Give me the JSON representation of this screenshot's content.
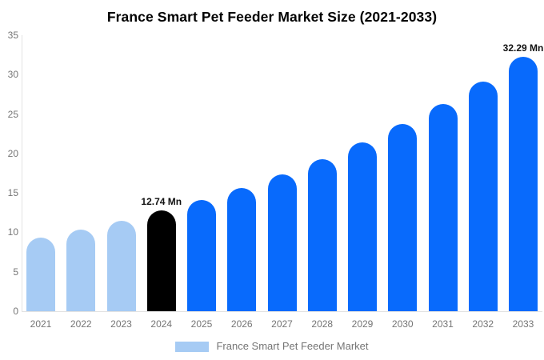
{
  "title": "France Smart Pet Feeder Market Size (2021-2033)",
  "legend": {
    "label": "France Smart Pet Feeder Market",
    "swatch_color": "#a6cbf4"
  },
  "colors": {
    "past_bar": "#a6cbf4",
    "highlight_bar": "#000000",
    "forecast_bar": "#086afc",
    "axis_line": "#e2e2e2",
    "tick_text": "#757575",
    "title_text": "#000000",
    "annotation_text": "#111111",
    "background": "#ffffff"
  },
  "chart_data": {
    "type": "bar",
    "title": "France Smart Pet Feeder Market Size (2021-2033)",
    "categories": [
      "2021",
      "2022",
      "2023",
      "2024",
      "2025",
      "2026",
      "2027",
      "2028",
      "2029",
      "2030",
      "2031",
      "2032",
      "2033"
    ],
    "values": [
      9.34,
      10.36,
      11.49,
      12.74,
      14.13,
      15.67,
      17.38,
      19.27,
      21.37,
      23.7,
      26.28,
      29.15,
      32.29
    ],
    "bar_labels": [
      "",
      "",
      "",
      "12.74 Mn",
      "",
      "",
      "",
      "",
      "",
      "",
      "",
      "",
      "32.29 Mn"
    ],
    "bar_colors": [
      "#a6cbf4",
      "#a6cbf4",
      "#a6cbf4",
      "#000000",
      "#086afc",
      "#086afc",
      "#086afc",
      "#086afc",
      "#086afc",
      "#086afc",
      "#086afc",
      "#086afc",
      "#086afc"
    ],
    "unit": "Mn",
    "xlabel": "",
    "ylabel": "",
    "ylim": [
      0,
      35
    ],
    "yticks": [
      0,
      5,
      10,
      15,
      20,
      25,
      30,
      35
    ],
    "grid": false,
    "legend_entries": [
      "France Smart Pet Feeder Market"
    ],
    "legend_position": "bottom"
  }
}
